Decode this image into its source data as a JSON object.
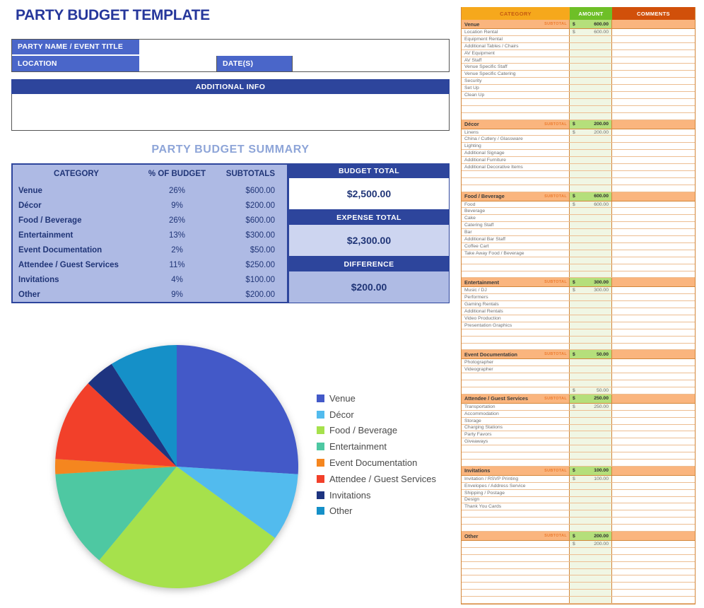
{
  "page": {
    "title": "PARTY BUDGET TEMPLATE"
  },
  "form": {
    "party_name_label": "PARTY NAME / EVENT TITLE",
    "party_name_value": "",
    "location_label": "LOCATION",
    "location_value": "",
    "dates_label": "DATE(S)",
    "dates_value": "",
    "additional_info_label": "ADDITIONAL INFO",
    "additional_info_value": ""
  },
  "summary": {
    "heading": "PARTY BUDGET SUMMARY",
    "columns": [
      "CATEGORY",
      "% OF BUDGET",
      "SUBTOTALS"
    ],
    "rows": [
      {
        "category": "Venue",
        "percent": "26%",
        "subtotal": "$600.00"
      },
      {
        "category": "Décor",
        "percent": "9%",
        "subtotal": "$200.00"
      },
      {
        "category": "Food / Beverage",
        "percent": "26%",
        "subtotal": "$600.00"
      },
      {
        "category": "Entertainment",
        "percent": "13%",
        "subtotal": "$300.00"
      },
      {
        "category": "Event Documentation",
        "percent": "2%",
        "subtotal": "$50.00"
      },
      {
        "category": "Attendee / Guest Services",
        "percent": "11%",
        "subtotal": "$250.00"
      },
      {
        "category": "Invitations",
        "percent": "4%",
        "subtotal": "$100.00"
      },
      {
        "category": "Other",
        "percent": "9%",
        "subtotal": "$200.00"
      }
    ],
    "totals": [
      {
        "label": "BUDGET TOTAL",
        "value": "$2,500.00"
      },
      {
        "label": "EXPENSE TOTAL",
        "value": "$2,300.00"
      },
      {
        "label": "DIFFERENCE",
        "value": "$200.00"
      }
    ]
  },
  "chart_data": {
    "type": "pie",
    "title": "",
    "categories": [
      "Venue",
      "Décor",
      "Food / Beverage",
      "Entertainment",
      "Event Documentation",
      "Attendee / Guest Services",
      "Invitations",
      "Other"
    ],
    "values": [
      26,
      9,
      26,
      13,
      2,
      11,
      4,
      9
    ],
    "colors": [
      "#4359C8",
      "#52BBEE",
      "#A6E14C",
      "#4EC8A2",
      "#F5861F",
      "#F2402A",
      "#1E3480",
      "#1590C8"
    ],
    "legend_position": "right",
    "start_angle_deg": 0,
    "direction": "clockwise"
  },
  "sheet": {
    "currency_symbol": "$",
    "subtotal_label": "SUBTOTAL",
    "columns": [
      {
        "label": "CATEGORY",
        "bg": "#F6A81C",
        "fg": "#C55A11"
      },
      {
        "label": "AMOUNT",
        "bg": "#6EBF27",
        "fg": "#FFFFFF"
      },
      {
        "label": "COMMENTS",
        "bg": "#D1500A",
        "fg": "#FFFFFF"
      }
    ],
    "sections": [
      {
        "name": "Venue",
        "subtotal": "600.00",
        "rows": [
          {
            "label": "Location Rental",
            "amount": "600.00"
          },
          {
            "label": "Equipment Rental",
            "amount": ""
          },
          {
            "label": "Additional Tables / Chairs",
            "amount": ""
          },
          {
            "label": "AV Equipment",
            "amount": ""
          },
          {
            "label": "AV Staff",
            "amount": ""
          },
          {
            "label": "Venue Specific Staff",
            "amount": ""
          },
          {
            "label": "Venue Specific Catering",
            "amount": ""
          },
          {
            "label": "Security",
            "amount": ""
          },
          {
            "label": "Set Up",
            "amount": ""
          },
          {
            "label": "Clean Up",
            "amount": ""
          },
          {
            "label": "",
            "amount": ""
          },
          {
            "label": "",
            "amount": ""
          },
          {
            "label": "",
            "amount": ""
          }
        ]
      },
      {
        "name": "Décor",
        "subtotal": "200.00",
        "rows": [
          {
            "label": "Linens",
            "amount": "200.00"
          },
          {
            "label": "China / Cutlery / Glassware",
            "amount": ""
          },
          {
            "label": "Lighting",
            "amount": ""
          },
          {
            "label": "Additional Signage",
            "amount": ""
          },
          {
            "label": "Additional Furniture",
            "amount": ""
          },
          {
            "label": "Additional Decorative Items",
            "amount": ""
          },
          {
            "label": "",
            "amount": ""
          },
          {
            "label": "",
            "amount": ""
          },
          {
            "label": "",
            "amount": ""
          }
        ]
      },
      {
        "name": "Food / Beverage",
        "subtotal": "600.00",
        "rows": [
          {
            "label": "Food",
            "amount": "600.00"
          },
          {
            "label": "Beverage",
            "amount": ""
          },
          {
            "label": "Cake",
            "amount": ""
          },
          {
            "label": "Catering Staff",
            "amount": ""
          },
          {
            "label": "Bar",
            "amount": ""
          },
          {
            "label": "Additional Bar Staff",
            "amount": ""
          },
          {
            "label": "Coffee Cart",
            "amount": ""
          },
          {
            "label": "Take Away Food / Beverage",
            "amount": ""
          },
          {
            "label": "",
            "amount": ""
          },
          {
            "label": "",
            "amount": ""
          },
          {
            "label": "",
            "amount": ""
          }
        ]
      },
      {
        "name": "Entertainment",
        "subtotal": "300.00",
        "rows": [
          {
            "label": "Music / DJ",
            "amount": "300.00"
          },
          {
            "label": "Performers",
            "amount": ""
          },
          {
            "label": "Gaming Rentals",
            "amount": ""
          },
          {
            "label": "Additional Rentals",
            "amount": ""
          },
          {
            "label": "Video Production",
            "amount": ""
          },
          {
            "label": "Presentation Graphics",
            "amount": ""
          },
          {
            "label": "",
            "amount": ""
          },
          {
            "label": "",
            "amount": ""
          },
          {
            "label": "",
            "amount": ""
          }
        ]
      },
      {
        "name": "Event Documentation",
        "subtotal": "50.00",
        "rows": [
          {
            "label": "Photographer",
            "amount": ""
          },
          {
            "label": "Videographer",
            "amount": ""
          },
          {
            "label": "",
            "amount": ""
          },
          {
            "label": "",
            "amount": ""
          },
          {
            "label": "",
            "amount": "50.00"
          }
        ]
      },
      {
        "name": "Attendee / Guest Services",
        "subtotal": "250.00",
        "rows": [
          {
            "label": "Transportation",
            "amount": "250.00"
          },
          {
            "label": "Accommodation",
            "amount": ""
          },
          {
            "label": "Storage",
            "amount": ""
          },
          {
            "label": "Charging Stations",
            "amount": ""
          },
          {
            "label": "Party Favors",
            "amount": ""
          },
          {
            "label": "Giveaways",
            "amount": ""
          },
          {
            "label": "",
            "amount": ""
          },
          {
            "label": "",
            "amount": ""
          },
          {
            "label": "",
            "amount": ""
          }
        ]
      },
      {
        "name": "Invitations",
        "subtotal": "100.00",
        "rows": [
          {
            "label": "Invitation / RSVP Printing",
            "amount": "100.00"
          },
          {
            "label": "Envelopes / Address Service",
            "amount": ""
          },
          {
            "label": "Shipping / Postage",
            "amount": ""
          },
          {
            "label": "Design",
            "amount": ""
          },
          {
            "label": "Thank You Cards",
            "amount": ""
          },
          {
            "label": "",
            "amount": ""
          },
          {
            "label": "",
            "amount": ""
          },
          {
            "label": "",
            "amount": ""
          }
        ]
      },
      {
        "name": "Other",
        "subtotal": "200.00",
        "rows": [
          {
            "label": "",
            "amount": "200.00"
          },
          {
            "label": "",
            "amount": ""
          },
          {
            "label": "",
            "amount": ""
          },
          {
            "label": "",
            "amount": ""
          },
          {
            "label": "",
            "amount": ""
          },
          {
            "label": "",
            "amount": ""
          },
          {
            "label": "",
            "amount": ""
          },
          {
            "label": "",
            "amount": ""
          },
          {
            "label": "",
            "amount": ""
          }
        ]
      }
    ]
  }
}
